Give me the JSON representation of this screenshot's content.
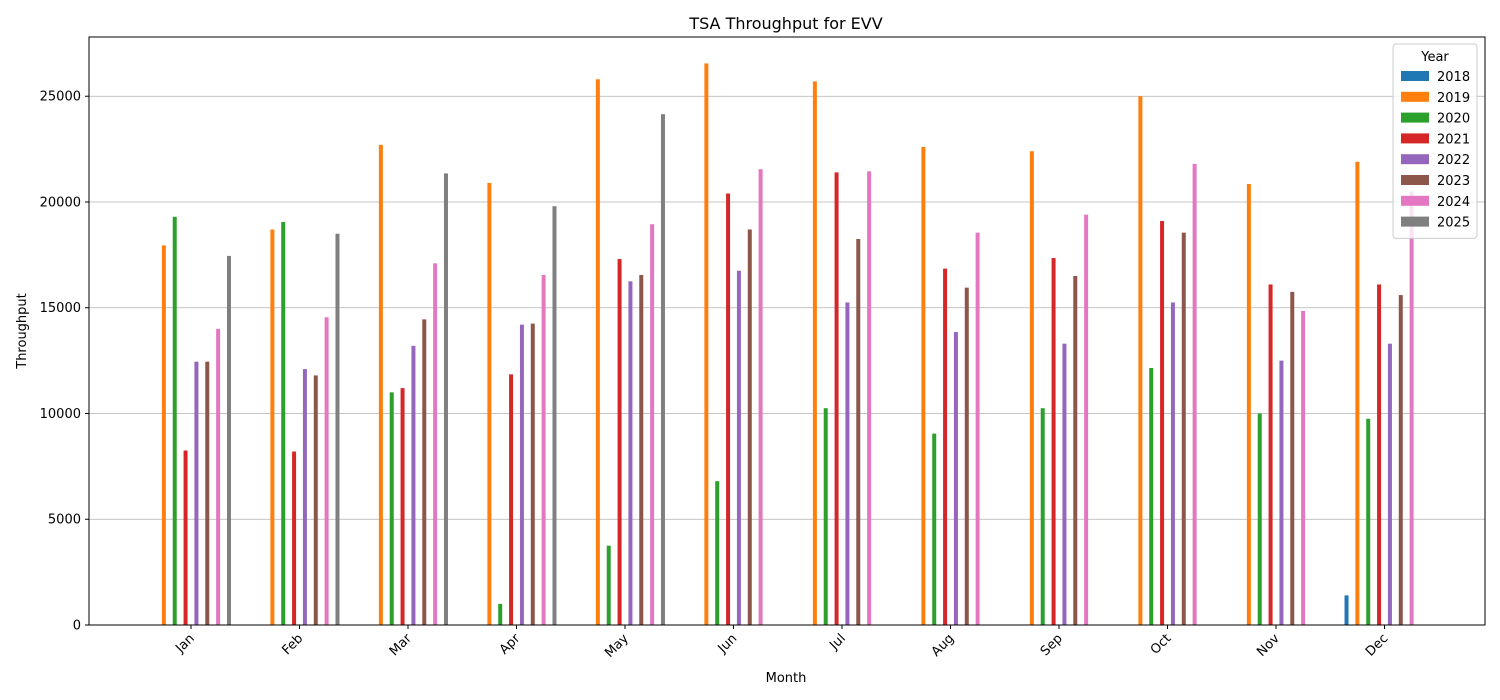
{
  "chart_data": {
    "type": "bar",
    "title": "TSA Throughput for EVV",
    "xlabel": "Month",
    "ylabel": "Throughput",
    "ylim": [
      0,
      27800
    ],
    "yticks": [
      0,
      5000,
      10000,
      15000,
      20000,
      25000
    ],
    "grid": "y-axis",
    "legend_position": "top-right",
    "legend_title": "Year",
    "categories": [
      "Jan",
      "Feb",
      "Mar",
      "Apr",
      "May",
      "Jun",
      "Jul",
      "Aug",
      "Sep",
      "Oct",
      "Nov",
      "Dec"
    ],
    "series": [
      {
        "name": "2018",
        "color": "#1f77b4",
        "values": [
          null,
          null,
          null,
          null,
          null,
          null,
          null,
          null,
          null,
          null,
          null,
          1400
        ]
      },
      {
        "name": "2019",
        "color": "#ff7f0e",
        "values": [
          17950,
          18700,
          22700,
          20900,
          25800,
          26550,
          25700,
          22600,
          22400,
          25000,
          20850,
          21900
        ]
      },
      {
        "name": "2020",
        "color": "#2ca02c",
        "values": [
          19300,
          19050,
          11000,
          1000,
          3750,
          6800,
          10250,
          9050,
          10250,
          12150,
          10000,
          9750
        ]
      },
      {
        "name": "2021",
        "color": "#d62728",
        "values": [
          8250,
          8200,
          11200,
          11850,
          17300,
          20400,
          21400,
          16850,
          17350,
          19100,
          16100,
          16100
        ]
      },
      {
        "name": "2022",
        "color": "#9467bd",
        "values": [
          12450,
          12100,
          13200,
          14200,
          16250,
          16750,
          15250,
          13850,
          13300,
          15250,
          12500,
          13300
        ]
      },
      {
        "name": "2023",
        "color": "#8c564b",
        "values": [
          12450,
          11800,
          14450,
          14250,
          16550,
          18700,
          18250,
          15950,
          16500,
          18550,
          15750,
          15600
        ]
      },
      {
        "name": "2024",
        "color": "#e377c2",
        "values": [
          14000,
          14550,
          17100,
          16550,
          18950,
          21550,
          21450,
          18550,
          19400,
          21800,
          14850,
          20500
        ]
      },
      {
        "name": "2025",
        "color": "#7f7f7f",
        "values": [
          17450,
          18500,
          21350,
          19800,
          24150,
          null,
          null,
          null,
          null,
          null,
          null,
          null
        ]
      }
    ]
  }
}
